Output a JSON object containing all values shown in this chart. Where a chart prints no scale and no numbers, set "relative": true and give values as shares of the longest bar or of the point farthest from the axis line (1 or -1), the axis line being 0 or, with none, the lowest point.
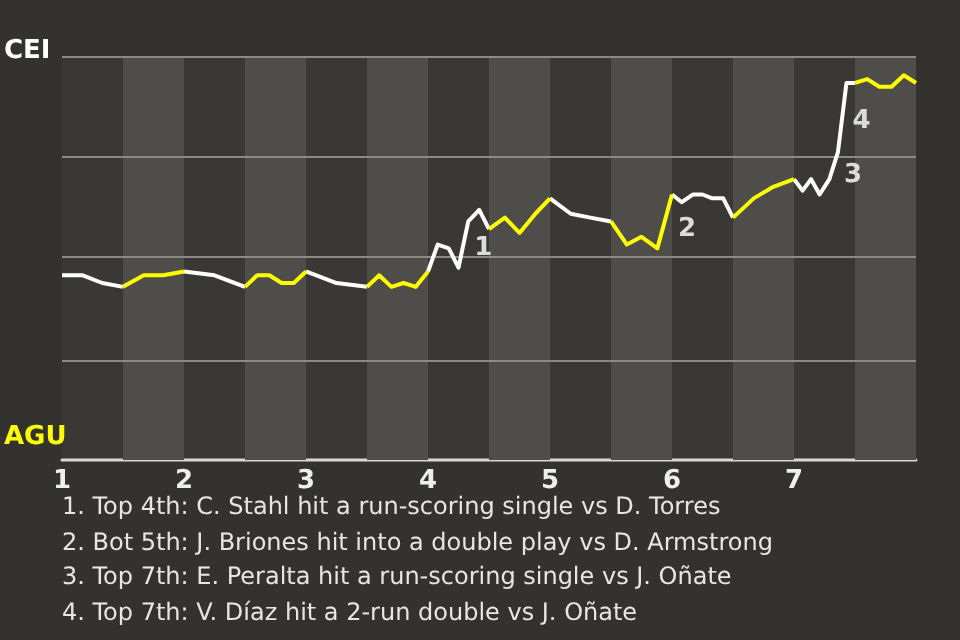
{
  "chart_data": {
    "type": "line",
    "relative": true,
    "xlim": [
      1,
      8
    ],
    "xticks": [
      1,
      2,
      3,
      4,
      5,
      6,
      7
    ],
    "grid": "y",
    "series": [
      {
        "name": "CEI",
        "color": "#ffffff",
        "x": [
          1,
          1.17,
          1.33,
          1.5,
          1.75,
          2,
          2.25,
          2.5,
          2.75,
          3,
          3.25,
          3.5,
          3.75,
          4,
          4.08,
          4.17,
          4.25,
          4.33,
          4.42,
          4.5,
          4.75,
          5,
          5.17,
          5.33,
          5.5,
          5.75,
          6,
          6.08,
          6.17,
          6.25,
          6.33,
          6.42,
          6.5,
          6.75,
          7,
          7.07,
          7.14,
          7.21,
          7.29,
          7.36,
          7.43,
          7.5
        ],
        "values": [
          0.48,
          0.48,
          0.46,
          0.45,
          null,
          0.49,
          0.48,
          0.45,
          null,
          0.49,
          0.46,
          0.45,
          null,
          0.49,
          0.56,
          0.55,
          0.5,
          0.62,
          0.65,
          0.6,
          null,
          0.68,
          0.64,
          0.63,
          0.62,
          null,
          0.69,
          0.67,
          0.69,
          0.69,
          0.68,
          0.68,
          0.63,
          null,
          0.73,
          0.7,
          0.73,
          0.69,
          0.73,
          0.8,
          0.98,
          0.98
        ]
      },
      {
        "name": "AGU",
        "color": "#ffff00",
        "x": [
          1.5,
          1.67,
          1.83,
          2,
          2.25,
          2.5,
          2.6,
          2.7,
          2.8,
          2.9,
          3,
          3.25,
          3.5,
          3.6,
          3.7,
          3.8,
          3.9,
          4,
          4.25,
          4.5,
          4.63,
          4.75,
          4.88,
          5,
          5.25,
          5.5,
          5.63,
          5.75,
          5.88,
          6,
          6.25,
          6.5,
          6.67,
          6.83,
          7,
          7.25,
          7.5,
          7.6,
          7.7,
          7.8,
          7.9,
          8
        ],
        "values": [
          0.45,
          0.48,
          0.48,
          0.49,
          null,
          0.45,
          0.48,
          0.48,
          0.46,
          0.46,
          0.49,
          null,
          0.45,
          0.48,
          0.45,
          0.46,
          0.45,
          0.49,
          null,
          0.6,
          0.63,
          0.59,
          0.64,
          0.68,
          null,
          0.62,
          0.56,
          0.58,
          0.55,
          0.69,
          null,
          0.63,
          0.68,
          0.71,
          0.73,
          null,
          0.98,
          0.99,
          0.97,
          0.97,
          1,
          0.98
        ]
      }
    ],
    "bands": [
      {
        "axis": "x",
        "from": 1.5,
        "to": 2,
        "color": "#4e4d4a"
      },
      {
        "axis": "x",
        "from": 2.5,
        "to": 3,
        "color": "#4e4d4a"
      },
      {
        "axis": "x",
        "from": 3.5,
        "to": 4,
        "color": "#4e4d4a"
      },
      {
        "axis": "x",
        "from": 4.5,
        "to": 5,
        "color": "#4e4d4a"
      },
      {
        "axis": "x",
        "from": 5.5,
        "to": 6,
        "color": "#4e4d4a"
      },
      {
        "axis": "x",
        "from": 6.5,
        "to": 7,
        "color": "#4e4d4a"
      },
      {
        "axis": "x",
        "from": 7.5,
        "to": 8,
        "color": "#4e4d4a"
      }
    ],
    "annotations": [
      {
        "text": "1",
        "x": 4.33,
        "y": 0.55
      },
      {
        "text": "2",
        "x": 6,
        "y": 0.6
      },
      {
        "text": "3",
        "x": 7.36,
        "y": 0.74
      },
      {
        "text": "4",
        "x": 7.43,
        "y": 0.88
      },
      "1. Top 4th: C. Stahl hit a run-scoring single vs D. Torres",
      "2. Bot 5th: J. Briones hit into a double play vs D. Armstrong",
      "3. Top 7th: E. Peralta hit a run-scoring single vs J. Oñate",
      "4. Top 7th: V. Díaz hit a 2-run double vs J. Oñate"
    ]
  }
}
